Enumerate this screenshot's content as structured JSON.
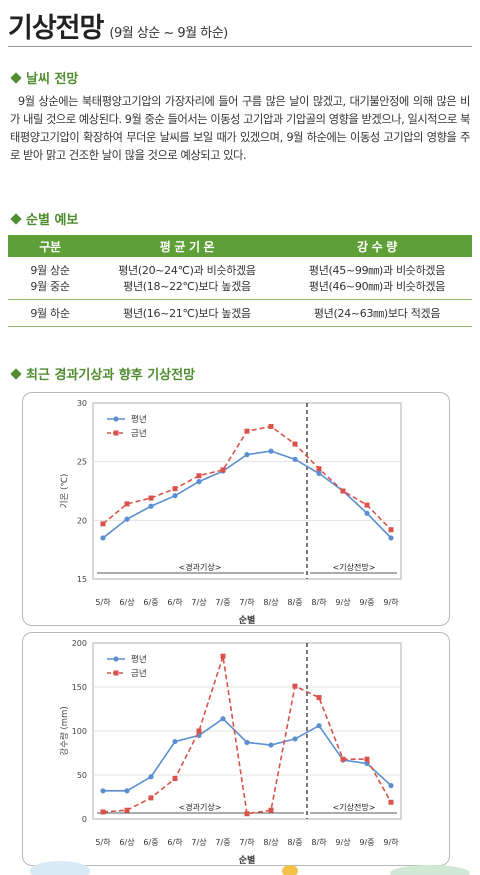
{
  "header": {
    "title": "기상전망",
    "subtitle": "(9월 상순 ~ 9월 하순)"
  },
  "weather_section": {
    "heading": "날씨 전망",
    "paragraph": "9월 상순에는 북태평양고기압의 가장자리에 들어 구름 많은 날이 많겠고, 대기불안정에 의해 많은 비가 내릴 것으로 예상된다. 9월 중순 들어서는 이동성 고기압과 기압골의 영향을 받겠으나, 일시적으로 북태평양고기압이 확장하여 무더운 날씨를 보일 때가 있겠으며, 9월 하순에는 이동성 고기압의 영향을 주로 받아 맑고 건조한 날이 많을 것으로 예상되고 있다."
  },
  "forecast_section": {
    "heading": "순별 예보",
    "columns": [
      "구분",
      "평 균 기 온",
      "강 수 량"
    ],
    "rows": [
      [
        "9월 상순",
        "평년(20~24℃)과 비슷하겠음",
        "평년(45~99㎜)과 비슷하겠음"
      ],
      [
        "9월 중순",
        "평년(18~22℃)보다 높겠음",
        "평년(46~90㎜)과 비슷하겠음"
      ],
      [
        "9월 하순",
        "평년(16~21℃)보다 높겠음",
        "평년(24~63㎜)보다 적겠음"
      ]
    ]
  },
  "charts_section": {
    "heading": "최근 경과기상과 향후 기상전망"
  },
  "colors": {
    "accent_green": "#4f8d2f",
    "table_header": "#5e9f37",
    "normal_series": "#5b8fd0",
    "current_series": "#d9534a"
  },
  "chart_data": [
    {
      "type": "line",
      "categories": [
        "5/하",
        "6/상",
        "6/중",
        "6/하",
        "7/상",
        "7/중",
        "7/하",
        "8/상",
        "8/중",
        "8/하",
        "9/상",
        "9/중",
        "9/하"
      ],
      "series": [
        {
          "name": "평년",
          "values": [
            18.5,
            20.1,
            21.2,
            22.1,
            23.3,
            24.2,
            25.6,
            25.9,
            25.2,
            24.0,
            22.5,
            20.6,
            18.5
          ]
        },
        {
          "name": "금년",
          "values": [
            19.7,
            21.4,
            21.9,
            22.7,
            23.8,
            24.3,
            27.6,
            28.0,
            26.5,
            24.4,
            22.5,
            21.3,
            19.2
          ]
        }
      ],
      "xlabel": "순별",
      "ylabel": "기온 (℃)",
      "ylim": [
        15,
        30
      ],
      "yticks": [
        15,
        20,
        25,
        30
      ],
      "legend": "top-left",
      "regions": [
        "<경과기상>",
        "<기상전망>"
      ],
      "divider_after": "8/중"
    },
    {
      "type": "line",
      "categories": [
        "5/하",
        "6/상",
        "6/중",
        "6/하",
        "7/상",
        "7/중",
        "7/하",
        "8/상",
        "8/중",
        "8/하",
        "9/상",
        "9/중",
        "9/하"
      ],
      "series": [
        {
          "name": "평년",
          "values": [
            32,
            32,
            48,
            88,
            95,
            114,
            87,
            84,
            91,
            106,
            67,
            63,
            38
          ]
        },
        {
          "name": "금년",
          "values": [
            8,
            10,
            24,
            46,
            100,
            185,
            6,
            10,
            151,
            138,
            68,
            68,
            19
          ]
        }
      ],
      "xlabel": "순별",
      "ylabel": "강수량 (mm)",
      "ylim": [
        0,
        200
      ],
      "yticks": [
        0,
        50,
        100,
        150,
        200
      ],
      "legend": "top-left",
      "regions": [
        "<경과기상>",
        "<기상전망>"
      ],
      "divider_after": "8/중"
    }
  ]
}
